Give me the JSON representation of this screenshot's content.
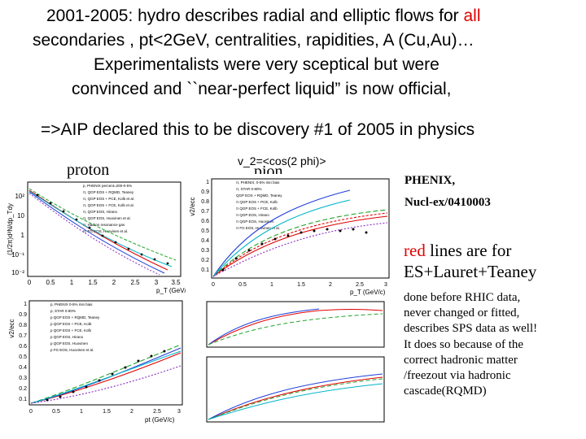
{
  "slide": {
    "line1_year": "2001-2005",
    "line1_rest": ": hydro describes radial and elliptic flows for ",
    "line1_all": "all",
    "line2": "secondaries , pt<2GeV, centralities, rapidities, A (Cu,Au)…",
    "line3": "Experimentalists were very sceptical but were",
    "line4": "convinced and ``near-perfect liquid” is now official,",
    "line5": "=>AIP declared this to be discovery #1 of 2005 in physics",
    "label_proton": "proton",
    "label_pion": "pion",
    "label_v2": "v_2=<cos(2 phi)>",
    "ref_line1": "PHENIX,",
    "ref_line2": "Nucl-ex/0410003",
    "red_word": "red",
    "red_rest": " lines are for",
    "red_line2": "ES+Lauret+Teaney",
    "note": [
      "done before RHIC data,",
      "never changed or fitted,",
      "describes SPS data as well!",
      "It does so because of the",
      "correct hadronic matter",
      "/freezout via hadronic",
      "cascade(RQMD)"
    ]
  },
  "plots": {
    "p1": {
      "ylabel": "(1/2π)d²N/dp_Tdy",
      "xlabel": "p_T (GeV/c)",
      "xticks": [
        "0",
        "0.5",
        "1",
        "1.5",
        "2",
        "2.5",
        "3",
        "3.5"
      ],
      "yticks": [
        "10²",
        "10",
        "1",
        "10⁻¹",
        "10⁻²"
      ],
      "legend": [
        "p, PHENIX percent=200-0-5%",
        "π, QGP EOS + RQMD, Teaney",
        "π, QGP EOS + PCE, Kolb et al.",
        "π, QGP EOS + FCE, Kolb et al.",
        "π, QGP EOS, Hirano",
        "π, QGP EOS, Huovinen et al.",
        "π, Hadron resonance gas",
        "π, FG EOS, Huovinen et al."
      ]
    },
    "p2": {
      "ylabel": "v2/ecc",
      "xlabel": "p_T (GeV/c)",
      "xticks": [
        "0",
        "0.5",
        "1",
        "1.5",
        "2",
        "2.5",
        "3"
      ],
      "yticks": [
        "1",
        "0.9",
        "0.8",
        "0.7",
        "0.6",
        "0.5",
        "0.4",
        "0.3",
        "0.2",
        "0.1"
      ],
      "legend": [
        "π, PHENIX, 0-5% min bias",
        "π, STAR 0-80%",
        "QGP EOS + RQMD, Teaney",
        "π QGP EOS + PCE, Kolb",
        "π QGP EOS + FCE, Kolb",
        "π QGP EOS, Hirano",
        "π QGP EOS, Huovinen",
        "π FG EOS, Huovinen et al."
      ]
    },
    "p3": {
      "ylabel": "v2/ecc",
      "xlabel": "pt (GeV/c)",
      "xticks": [
        "0",
        "0.5",
        "1",
        "1.5",
        "2",
        "2.5",
        "3"
      ],
      "yticks": [
        "1",
        "0.9",
        "0.8",
        "0.7",
        "0.6",
        "0.5",
        "0.4",
        "0.3",
        "0.2",
        "0.1"
      ],
      "legend": [
        "p, PHENIX 0-5% min bias",
        "p, STAR 0-80%",
        "p QGP EOS + RQMD, Teaney",
        "p QGP EOS + PCE, Kolb",
        "p QGP EOS + FCE, Kolb",
        "p QGP EOS, Hirano",
        "p QGP EOS, Huovinen",
        "p FG EOS, Huovinen et al."
      ]
    }
  },
  "colors": {
    "red": "#e00000",
    "blue": "#1f3fd8",
    "green": "#22a52b",
    "cyan": "#00b5c8",
    "darkred": "#8b1010",
    "purple": "#8a2bbf"
  }
}
